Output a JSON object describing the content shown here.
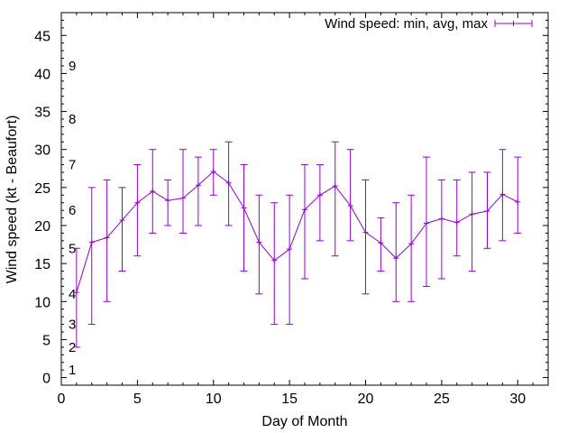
{
  "chart_data": {
    "type": "line",
    "xlabel": "Day of Month",
    "ylabel": "Wind speed (kt - Beaufort)",
    "xlim": [
      0,
      32
    ],
    "ylim": [
      -1,
      48
    ],
    "xticks": [
      0,
      5,
      10,
      15,
      20,
      25,
      30
    ],
    "yticks": [
      0,
      5,
      10,
      15,
      20,
      25,
      30,
      35,
      40,
      45
    ],
    "grid": false,
    "legend_position": "top-right",
    "series": [
      {
        "name": "Wind speed: min, avg, max",
        "color": "#9400d3",
        "x": [
          1,
          2,
          3,
          4,
          5,
          6,
          7,
          8,
          9,
          10,
          11,
          12,
          13,
          14,
          15,
          16,
          17,
          18,
          19,
          20,
          21,
          22,
          23,
          24,
          25,
          26,
          27,
          28,
          29,
          30
        ],
        "avg": [
          11.2,
          17.8,
          18.4,
          20.7,
          23.0,
          24.5,
          23.3,
          23.6,
          25.3,
          27.1,
          25.6,
          22.3,
          17.8,
          15.4,
          16.9,
          22.1,
          24.0,
          25.2,
          22.6,
          19.1,
          17.7,
          15.7,
          17.6,
          20.3,
          20.9,
          20.4,
          21.5,
          21.9,
          24.1,
          23.1
        ],
        "min": [
          4,
          7,
          10,
          14,
          16,
          19,
          20,
          19,
          20,
          24,
          20,
          14,
          11,
          7,
          7,
          13,
          18,
          16,
          18,
          11,
          14,
          10,
          10,
          12,
          13,
          16,
          14,
          17,
          18,
          19
        ],
        "max": [
          17,
          25,
          26,
          25,
          28,
          30,
          26,
          30,
          29,
          30,
          31,
          28,
          24,
          23,
          24,
          28,
          28,
          31,
          30,
          26,
          21,
          23,
          24,
          29,
          26,
          26,
          27,
          27,
          30,
          29
        ]
      }
    ],
    "beaufort_labels": [
      {
        "label": "1",
        "y": 1
      },
      {
        "label": "2",
        "y": 4
      },
      {
        "label": "3",
        "y": 7
      },
      {
        "label": "4",
        "y": 11
      },
      {
        "label": "5",
        "y": 17
      },
      {
        "label": "6",
        "y": 22
      },
      {
        "label": "7",
        "y": 28
      },
      {
        "label": "8",
        "y": 34
      },
      {
        "label": "9",
        "y": 41
      }
    ]
  }
}
